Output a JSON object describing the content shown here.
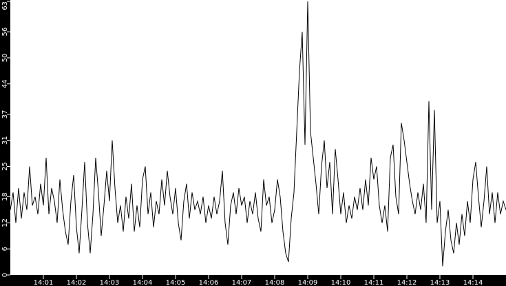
{
  "chart_data": {
    "type": "line",
    "title": "",
    "xlabel": "",
    "ylabel": "",
    "x_start": "14:00:00",
    "x_step_seconds": 5,
    "x_ticks": [
      "14:01",
      "14:02",
      "14:03",
      "14:04",
      "14:05",
      "14:06",
      "14:07",
      "14:08",
      "14:09",
      "14:10",
      "14:11",
      "14:12",
      "14:13",
      "14:14"
    ],
    "y_ticks": [
      "0",
      "6",
      "12",
      "18",
      "25",
      "31",
      "37",
      "44",
      "50",
      "56",
      "63"
    ],
    "ylim": [
      0,
      63
    ],
    "xlim": [
      "14:00:00",
      "14:15:00"
    ],
    "grid": false,
    "colors": {
      "background": "#000000",
      "plot": "#ffffff",
      "line": "#000000",
      "text": "#ffffff"
    },
    "values": [
      15,
      19,
      12,
      20,
      13,
      19,
      15,
      25,
      16,
      18,
      14,
      21,
      16,
      27,
      14,
      20,
      17,
      12,
      22,
      15,
      10,
      7,
      17,
      23,
      11,
      5,
      15,
      26,
      12,
      5,
      14,
      27,
      19,
      9,
      16,
      24,
      17,
      31,
      20,
      12,
      16,
      10,
      18,
      13,
      21,
      10,
      16,
      11,
      22,
      25,
      14,
      19,
      11,
      17,
      14,
      22,
      16,
      24,
      18,
      14,
      20,
      12,
      8,
      17,
      21,
      13,
      19,
      15,
      17,
      14,
      18,
      12,
      16,
      13,
      18,
      14,
      17,
      24,
      12,
      7,
      16,
      19,
      14,
      20,
      16,
      18,
      12,
      17,
      14,
      19,
      13,
      10,
      22,
      16,
      18,
      12,
      15,
      22,
      18,
      10,
      5,
      3,
      13,
      19,
      33,
      47,
      56,
      30,
      63,
      33,
      27,
      21,
      14,
      25,
      31,
      20,
      26,
      14,
      29,
      22,
      14,
      19,
      12,
      16,
      13,
      18,
      15,
      20,
      15,
      22,
      16,
      27,
      22,
      25,
      16,
      12,
      16,
      10,
      27,
      30,
      18,
      14,
      35,
      31,
      26,
      21,
      17,
      14,
      19,
      15,
      21,
      12,
      40,
      15,
      38,
      12,
      17,
      2,
      10,
      15,
      8,
      5,
      12,
      7,
      14,
      9,
      17,
      12,
      22,
      26,
      18,
      11,
      17,
      25,
      14,
      19,
      12,
      19,
      14,
      17,
      15
    ]
  }
}
